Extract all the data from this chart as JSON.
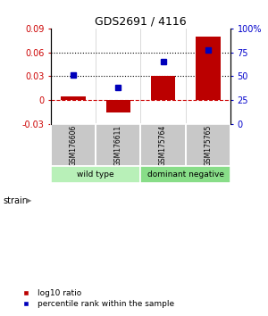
{
  "title": "GDS2691 / 4116",
  "samples": [
    "GSM176606",
    "GSM176611",
    "GSM175764",
    "GSM175765"
  ],
  "log10_ratio": [
    0.005,
    -0.015,
    0.03,
    0.08
  ],
  "percentile_rank": [
    51,
    38,
    65,
    77
  ],
  "left_ylim": [
    -0.03,
    0.09
  ],
  "right_ylim": [
    0,
    100
  ],
  "left_yticks": [
    -0.03,
    0,
    0.03,
    0.06,
    0.09
  ],
  "right_yticks": [
    0,
    25,
    50,
    75,
    100
  ],
  "left_ytick_labels": [
    "-0.03",
    "0",
    "0.03",
    "0.06",
    "0.09"
  ],
  "right_ytick_labels": [
    "0",
    "25",
    "50",
    "75",
    "100%"
  ],
  "hlines_dotted": [
    0.03,
    0.06
  ],
  "hline_dashed": 0.0,
  "bar_color": "#bb0000",
  "point_color": "#0000bb",
  "strain_groups": [
    {
      "label": "wild type",
      "indices": [
        0,
        1
      ],
      "color": "#b8f0b8"
    },
    {
      "label": "dominant negative",
      "indices": [
        2,
        3
      ],
      "color": "#88dd88"
    }
  ],
  "sample_box_color": "#c8c8c8",
  "strain_label": "strain",
  "legend_items": [
    {
      "color": "#bb0000",
      "label": "log10 ratio"
    },
    {
      "color": "#0000bb",
      "label": "percentile rank within the sample"
    }
  ],
  "bg_color": "#ffffff",
  "left_tick_color": "#cc0000",
  "right_tick_color": "#0000cc"
}
